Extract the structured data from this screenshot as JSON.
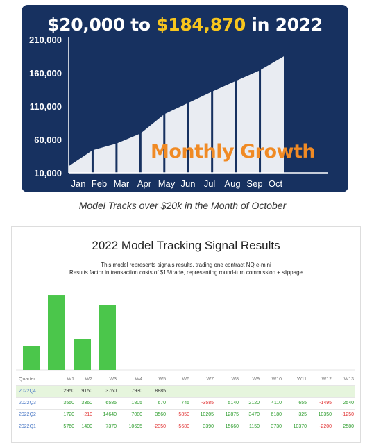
{
  "growth_chart": {
    "title_prefix": "$20,000 to ",
    "title_highlight": "$184,870",
    "title_suffix": " in 2022",
    "overlay_label": "Monthly Growth",
    "colors": {
      "background": "#173160",
      "area": "#e9ecf2",
      "text": "#ffffff",
      "highlight": "#f7c51d",
      "overlay": "#f08a24"
    }
  },
  "caption": "Model Tracks over $20k in the Month of October",
  "signal_panel": {
    "title": "2022 Model Tracking Signal Results",
    "subtitle_line1": "This model represents signals results, trading one contract NQ e-mini",
    "subtitle_line2": "Results factor in transaction costs of $15/trade, representing round-turn commission + slippage",
    "table": {
      "headers": [
        "Quarter",
        "W1",
        "W2",
        "W3",
        "W4",
        "W5",
        "W6",
        "W7",
        "W8",
        "W9",
        "W10",
        "W11",
        "W12",
        "W13"
      ],
      "rows": [
        {
          "quarter": "2022Q4",
          "values": [
            "2950",
            "9150",
            "3760",
            "7930",
            "8885",
            "",
            "",
            "",
            "",
            "",
            "",
            "",
            ""
          ]
        },
        {
          "quarter": "2022Q3",
          "values": [
            "3550",
            "3360",
            "6585",
            "1805",
            "670",
            "745",
            "-3585",
            "5140",
            "2120",
            "4110",
            "655",
            "-1495",
            "2540"
          ]
        },
        {
          "quarter": "2022Q2",
          "values": [
            "1720",
            "-210",
            "14640",
            "7080",
            "3560",
            "-5850",
            "10205",
            "12875",
            "3470",
            "6180",
            "325",
            "10350",
            "-1250"
          ]
        },
        {
          "quarter": "2022Q1",
          "values": [
            "5760",
            "1400",
            "7370",
            "10695",
            "-2350",
            "-5680",
            "3390",
            "15660",
            "1150",
            "3730",
            "10370",
            "-2200",
            "2580"
          ]
        }
      ],
      "colors": {
        "positive": "#2a9b2a",
        "negative": "#e03030",
        "quarter_link": "#4a78c5",
        "selected_row": "#e6f5dd"
      }
    }
  },
  "chart_data": [
    {
      "type": "area",
      "title": "$20,000 to $184,870 in 2022",
      "categories": [
        "Jan",
        "Feb",
        "Mar",
        "Apr",
        "May",
        "Jun",
        "Jul",
        "Aug",
        "Sep",
        "Oct"
      ],
      "series": [
        {
          "values": [
            20000,
            44000,
            54000,
            69000,
            98000,
            115000,
            132000,
            148000,
            164000,
            184870
          ]
        }
      ],
      "ytick_labels": [
        "210,000",
        "160,000",
        "110,000",
        "60,000",
        "10,000"
      ],
      "yticks": [
        210000,
        160000,
        110000,
        60000,
        10000
      ],
      "ylim": [
        10000,
        210000
      ],
      "annotation": "Monthly Growth",
      "grid": false
    },
    {
      "type": "bar",
      "title": "2022 Model Tracking Signal Results",
      "categories": [
        "W1",
        "W2",
        "W3",
        "W4"
      ],
      "series": [
        {
          "values": [
            2950,
            9150,
            3760,
            7930
          ]
        }
      ],
      "ylim": [
        0,
        10000
      ],
      "grid": false,
      "bar_color": "#4bc64b"
    }
  ]
}
